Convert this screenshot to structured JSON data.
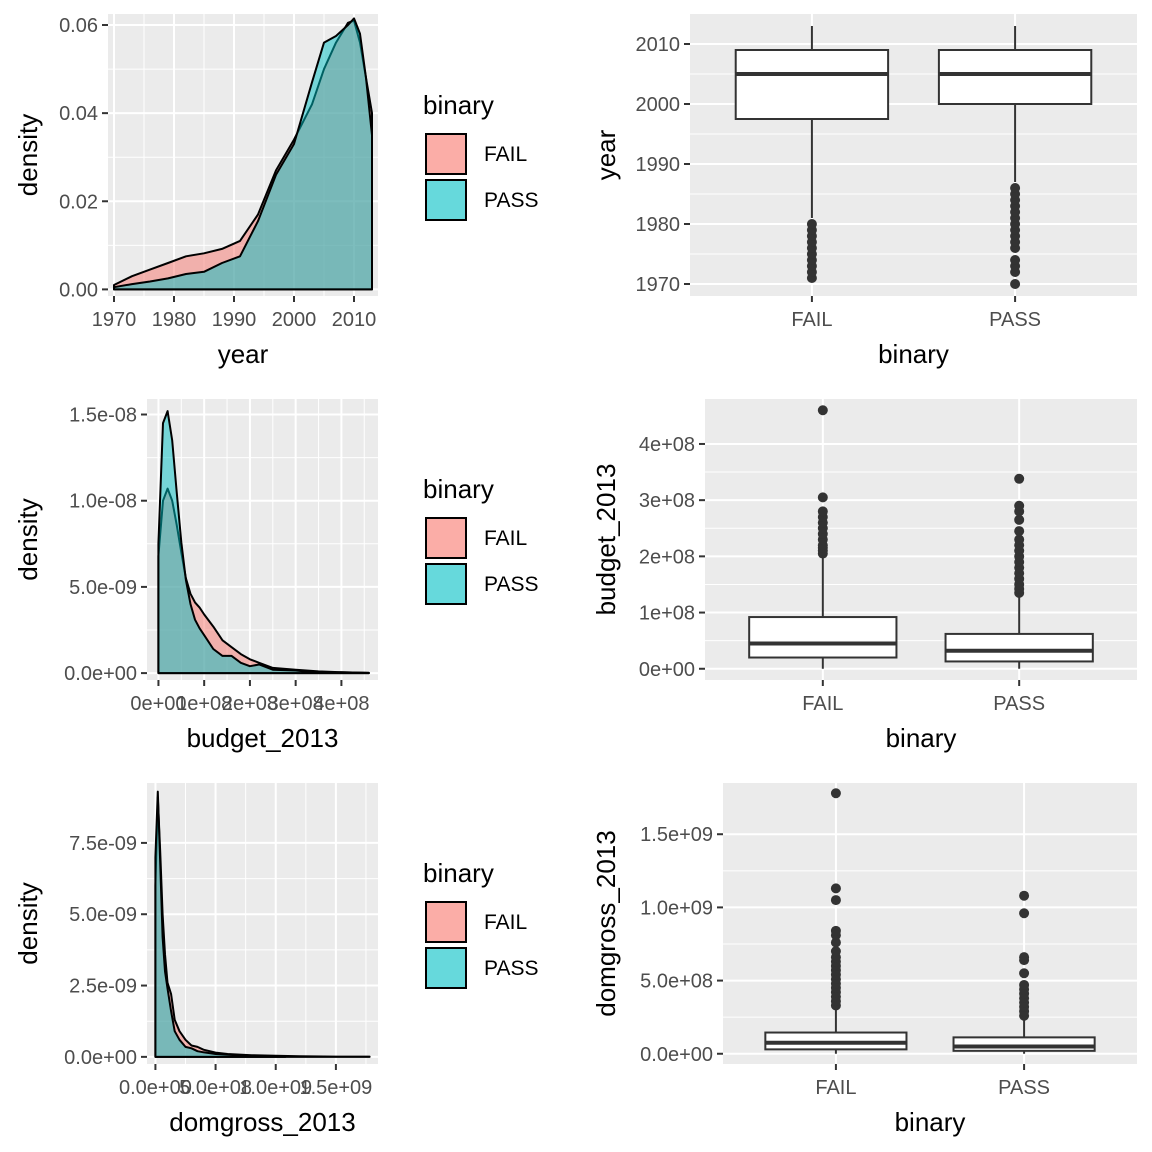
{
  "chart_data": [
    {
      "type": "area",
      "subtype": "density",
      "xlabel": "year",
      "ylabel": "density",
      "xlim": [
        1969,
        2014
      ],
      "ylim": [
        -0.0015,
        0.0625
      ],
      "x_ticks": [
        1970,
        1980,
        1990,
        2000,
        2010
      ],
      "x_tick_labels": [
        "1970",
        "1980",
        "1990",
        "2000",
        "2010"
      ],
      "y_ticks": [
        0,
        0.02,
        0.04,
        0.06
      ],
      "y_tick_labels": [
        "0.00",
        "0.02",
        "0.04",
        "0.06"
      ],
      "grid": true,
      "legend": {
        "title": "binary",
        "placement": "right",
        "entries": [
          "FAIL",
          "PASS"
        ]
      },
      "series": [
        {
          "name": "FAIL",
          "color": "#F8766D",
          "x": [
            1970,
            1973,
            1976,
            1979,
            1982,
            1985,
            1988,
            1991,
            1994,
            1997,
            2000,
            2003,
            2005,
            2007,
            2009,
            2010,
            2011,
            2012,
            2013,
            2013
          ],
          "y": [
            0.001,
            0.003,
            0.0045,
            0.006,
            0.0075,
            0.0082,
            0.0092,
            0.011,
            0.017,
            0.027,
            0.034,
            0.042,
            0.05,
            0.056,
            0.0605,
            0.061,
            0.056,
            0.048,
            0.04,
            0
          ]
        },
        {
          "name": "PASS",
          "color": "#00BFC4",
          "x": [
            1970,
            1973,
            1976,
            1979,
            1982,
            1985,
            1988,
            1991,
            1994,
            1997,
            2000,
            2003,
            2005,
            2007,
            2009,
            2010,
            2011,
            2012,
            2013,
            2013
          ],
          "y": [
            0.0005,
            0.0012,
            0.0018,
            0.0025,
            0.0035,
            0.004,
            0.006,
            0.0075,
            0.0155,
            0.026,
            0.033,
            0.047,
            0.056,
            0.0575,
            0.06,
            0.0615,
            0.058,
            0.048,
            0.035,
            0
          ]
        }
      ]
    },
    {
      "type": "box",
      "xlabel": "binary",
      "ylabel": "year",
      "ylim": [
        1968,
        2015
      ],
      "categories": [
        "FAIL",
        "PASS"
      ],
      "y_ticks": [
        1970,
        1980,
        1990,
        2000,
        2010
      ],
      "y_tick_labels": [
        "1970",
        "1980",
        "1990",
        "2000",
        "2010"
      ],
      "grid": true,
      "boxes": [
        {
          "name": "FAIL",
          "whisker_low": 1981,
          "q1": 1997.5,
          "median": 2005,
          "q3": 2009,
          "whisker_high": 2013,
          "outliers": [
            1971,
            1972,
            1973,
            1974,
            1975,
            1976,
            1977,
            1978,
            1979,
            1980
          ]
        },
        {
          "name": "PASS",
          "whisker_low": 1987,
          "q1": 2000,
          "median": 2005,
          "q3": 2009,
          "whisker_high": 2013,
          "outliers": [
            1970,
            1972,
            1973,
            1974,
            1976,
            1977,
            1978,
            1979,
            1980,
            1981,
            1982,
            1983,
            1984,
            1985,
            1986
          ]
        }
      ]
    },
    {
      "type": "area",
      "subtype": "density",
      "xlabel": "budget_2013",
      "ylabel": "density",
      "xlim": [
        -25000000.0,
        480000000.0
      ],
      "ylim": [
        -4e-10,
        1.59e-08
      ],
      "x_ticks": [
        0,
        100000000.0,
        200000000.0,
        300000000.0,
        400000000.0
      ],
      "x_tick_labels": [
        "0e+00",
        "1e+08",
        "2e+08",
        "3e+08",
        "4e+08"
      ],
      "y_ticks": [
        0,
        5e-09,
        1e-08,
        1.5e-08
      ],
      "y_tick_labels": [
        "0.0e+00",
        "5.0e-09",
        "1.0e-08",
        "1.5e-08"
      ],
      "grid": true,
      "legend": {
        "title": "binary",
        "placement": "right",
        "entries": [
          "FAIL",
          "PASS"
        ]
      },
      "series": [
        {
          "name": "FAIL",
          "color": "#F8766D",
          "x": [
            0,
            10000000.0,
            20000000.0,
            30000000.0,
            40000000.0,
            50000000.0,
            60000000.0,
            70000000.0,
            80000000.0,
            90000000.0,
            100000000.0,
            120000000.0,
            140000000.0,
            160000000.0,
            180000000.0,
            200000000.0,
            220000000.0,
            250000000.0,
            300000000.0,
            350000000.0,
            400000000.0,
            460000000.0,
            460000000.0
          ],
          "y": [
            6.8e-09,
            1e-08,
            1.07e-08,
            1e-08,
            8.6e-09,
            7e-09,
            5.5e-09,
            4.6e-09,
            4.1e-09,
            3.8e-09,
            3.4e-09,
            2.7e-09,
            1.9e-09,
            1.5e-09,
            1.1e-09,
            8e-10,
            6e-10,
            3e-10,
            2e-10,
            1e-10,
            5e-11,
            1e-11,
            0
          ]
        },
        {
          "name": "PASS",
          "color": "#00BFC4",
          "x": [
            0,
            10000000.0,
            20000000.0,
            30000000.0,
            40000000.0,
            50000000.0,
            60000000.0,
            70000000.0,
            80000000.0,
            90000000.0,
            100000000.0,
            120000000.0,
            140000000.0,
            160000000.0,
            180000000.0,
            200000000.0,
            220000000.0,
            250000000.0,
            300000000.0,
            350000000.0,
            400000000.0,
            460000000.0,
            460000000.0
          ],
          "y": [
            7.5e-09,
            1.45e-08,
            1.52e-08,
            1.35e-08,
            1.05e-08,
            7.6e-09,
            5.4e-09,
            4e-09,
            3.1e-09,
            2.6e-09,
            2.2e-09,
            1.4e-09,
            1e-09,
            1e-09,
            6e-10,
            4e-10,
            5e-10,
            2e-10,
            1.5e-10,
            2e-11,
            5e-11,
            1e-11,
            0
          ]
        }
      ]
    },
    {
      "type": "box",
      "xlabel": "binary",
      "ylabel": "budget_2013",
      "ylim": [
        -20000000.0,
        480000000.0
      ],
      "categories": [
        "FAIL",
        "PASS"
      ],
      "y_ticks": [
        0,
        100000000.0,
        200000000.0,
        300000000.0,
        400000000.0
      ],
      "y_tick_labels": [
        "0e+00",
        "1e+08",
        "2e+08",
        "3e+08",
        "4e+08"
      ],
      "grid": true,
      "boxes": [
        {
          "name": "FAIL",
          "whisker_low": 0,
          "q1": 20000000.0,
          "median": 45000000.0,
          "q3": 92000000.0,
          "whisker_high": 200000000.0,
          "outliers": [
            205000000.0,
            210000000.0,
            215000000.0,
            220000000.0,
            230000000.0,
            240000000.0,
            250000000.0,
            260000000.0,
            270000000.0,
            280000000.0,
            305000000.0,
            460000000.0
          ]
        },
        {
          "name": "PASS",
          "whisker_low": 0,
          "q1": 13000000.0,
          "median": 32000000.0,
          "q3": 62000000.0,
          "whisker_high": 130000000.0,
          "outliers": [
            135000000.0,
            142000000.0,
            150000000.0,
            160000000.0,
            170000000.0,
            180000000.0,
            190000000.0,
            200000000.0,
            210000000.0,
            220000000.0,
            230000000.0,
            245000000.0,
            265000000.0,
            280000000.0,
            290000000.0,
            338000000.0
          ]
        }
      ]
    },
    {
      "type": "area",
      "subtype": "density",
      "xlabel": "domgross_2013",
      "ylabel": "density",
      "xlim": [
        -70000000.0,
        1850000000.0
      ],
      "ylim": [
        -2.5e-10,
        9.6e-09
      ],
      "x_ticks": [
        0,
        500000000.0,
        1000000000.0,
        1500000000.0
      ],
      "x_tick_labels": [
        "0.0e+00",
        "5.0e+08",
        "1.0e+09",
        "1.5e+09"
      ],
      "y_ticks": [
        0,
        2.5e-09,
        5e-09,
        7.5e-09
      ],
      "y_tick_labels": [
        "0.0e+00",
        "2.5e-09",
        "5.0e-09",
        "7.5e-09"
      ],
      "grid": true,
      "legend": {
        "title": "binary",
        "placement": "right",
        "entries": [
          "FAIL",
          "PASS"
        ]
      },
      "series": [
        {
          "name": "FAIL",
          "color": "#F8766D",
          "x": [
            0,
            20000000.0,
            40000000.0,
            60000000.0,
            80000000.0,
            100000000.0,
            130000000.0,
            160000000.0,
            200000000.0,
            250000000.0,
            300000000.0,
            350000000.0,
            400000000.0,
            500000000.0,
            600000000.0,
            700000000.0,
            800000000.0,
            1000000000.0,
            1200000000.0,
            1500000000.0,
            1780000000.0,
            1780000000.0
          ],
          "y": [
            6e-09,
            9.1e-09,
            7.2e-09,
            5e-09,
            3.6e-09,
            2.6e-09,
            2.2e-09,
            1.3e-09,
            9e-10,
            6e-10,
            4e-10,
            3.5e-10,
            2.5e-10,
            1.5e-10,
            1e-10,
            8e-11,
            6e-11,
            4e-11,
            2e-11,
            1e-11,
            1e-11,
            0
          ]
        },
        {
          "name": "PASS",
          "color": "#00BFC4",
          "x": [
            0,
            20000000.0,
            40000000.0,
            60000000.0,
            80000000.0,
            100000000.0,
            130000000.0,
            160000000.0,
            200000000.0,
            250000000.0,
            300000000.0,
            350000000.0,
            400000000.0,
            500000000.0,
            600000000.0,
            700000000.0,
            800000000.0,
            1000000000.0,
            1080000000.0,
            1080000000.0
          ],
          "y": [
            7e-09,
            9.3e-09,
            6.8e-09,
            4.2e-09,
            3e-09,
            2.4e-09,
            1.6e-09,
            9e-10,
            6e-10,
            3.5e-10,
            3e-10,
            2e-10,
            1.6e-10,
            1e-10,
            8e-11,
            6e-11,
            4e-11,
            2e-11,
            1e-11,
            0
          ]
        }
      ]
    },
    {
      "type": "box",
      "xlabel": "binary",
      "ylabel": "domgross_2013",
      "ylim": [
        -70000000.0,
        1850000000.0
      ],
      "categories": [
        "FAIL",
        "PASS"
      ],
      "y_ticks": [
        0,
        500000000.0,
        1000000000.0,
        1500000000.0
      ],
      "y_tick_labels": [
        "0.0e+00",
        "5.0e+08",
        "1.0e+09",
        "1.5e+09"
      ],
      "grid": true,
      "boxes": [
        {
          "name": "FAIL",
          "whisker_low": 0,
          "q1": 30000000.0,
          "median": 75000000.0,
          "q3": 145000000.0,
          "whisker_high": 310000000.0,
          "outliers": [
            330000000.0,
            360000000.0,
            390000000.0,
            420000000.0,
            450000000.0,
            480000000.0,
            510000000.0,
            540000000.0,
            570000000.0,
            600000000.0,
            630000000.0,
            660000000.0,
            700000000.0,
            760000000.0,
            810000000.0,
            840000000.0,
            1050000000.0,
            1130000000.0,
            1780000000.0
          ]
        },
        {
          "name": "PASS",
          "whisker_low": 0,
          "q1": 20000000.0,
          "median": 50000000.0,
          "q3": 112000000.0,
          "whisker_high": 240000000.0,
          "outliers": [
            260000000.0,
            290000000.0,
            320000000.0,
            350000000.0,
            380000000.0,
            410000000.0,
            440000000.0,
            470000000.0,
            550000000.0,
            640000000.0,
            660000000.0,
            960000000.0,
            1080000000.0
          ]
        }
      ]
    }
  ]
}
